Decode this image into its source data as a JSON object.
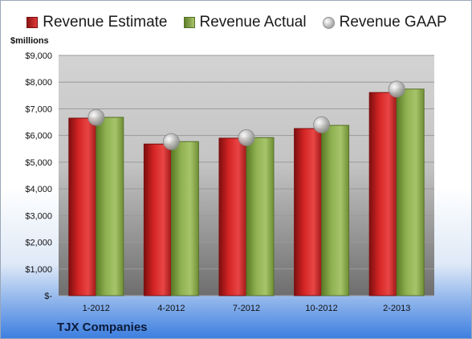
{
  "chart_data": {
    "type": "bar",
    "unit_label": "$millions",
    "categories": [
      "1-2012",
      "4-2012",
      "7-2012",
      "10-2012",
      "2-2013"
    ],
    "series": [
      {
        "name": "Revenue Estimate",
        "kind": "bar",
        "color": "#c41e1e",
        "values": [
          6650,
          5680,
          5900,
          6260,
          7610
        ]
      },
      {
        "name": "Revenue Actual",
        "kind": "bar",
        "color": "#86a845",
        "values": [
          6680,
          5770,
          5920,
          6380,
          7740
        ]
      },
      {
        "name": "Revenue GAAP",
        "kind": "marker",
        "color": "#b0b0b0",
        "values": [
          6680,
          5770,
          5920,
          6400,
          7740
        ]
      }
    ],
    "y_ticks": [
      "$-",
      "$1,000",
      "$2,000",
      "$3,000",
      "$4,000",
      "$5,000",
      "$6,000",
      "$7,000",
      "$8,000",
      "$9,000"
    ],
    "ylim": [
      0,
      9000
    ],
    "grid": true,
    "legend_position": "top"
  },
  "company": "TJX Companies"
}
